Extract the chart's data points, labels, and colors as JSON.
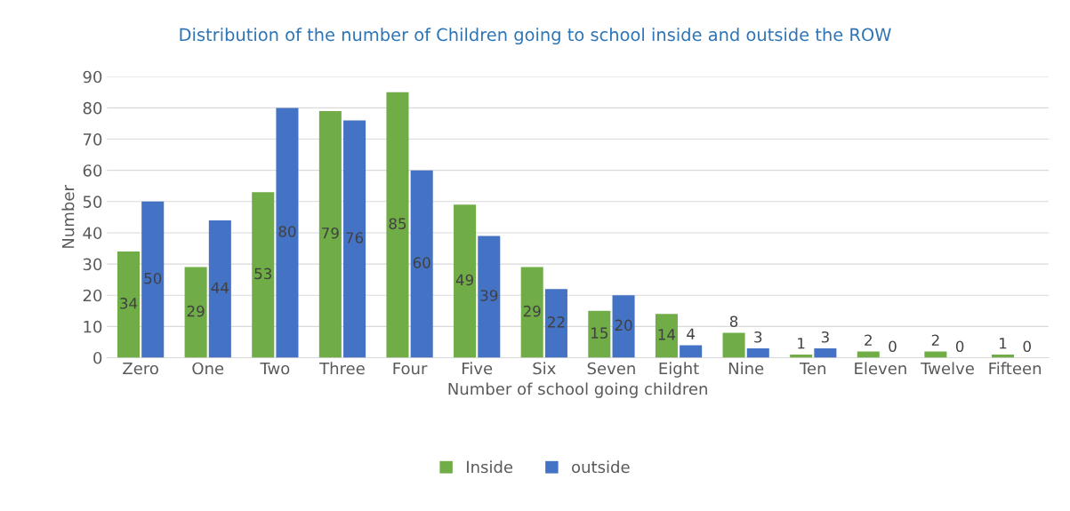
{
  "chart_data": {
    "type": "bar",
    "title": "Distribution of the number of Children going to school inside and outside the ROW",
    "xlabel": "Number of school going children",
    "ylabel": "Number",
    "categories": [
      "Zero",
      "One",
      "Two",
      "Three",
      "Four",
      "Five",
      "Six",
      "Seven",
      "Eight",
      "Nine",
      "Ten",
      "Eleven",
      "Twelve",
      "Fifteen"
    ],
    "series": [
      {
        "name": "Inside",
        "color": "#70ad47",
        "values": [
          34,
          29,
          53,
          79,
          85,
          49,
          29,
          15,
          14,
          8,
          1,
          2,
          2,
          1
        ]
      },
      {
        "name": "outside",
        "color": "#4472c4",
        "values": [
          50,
          44,
          80,
          76,
          60,
          39,
          22,
          20,
          4,
          3,
          3,
          0,
          0,
          0
        ]
      }
    ],
    "ylim": [
      0,
      90
    ],
    "yticks": [
      0,
      10,
      20,
      30,
      40,
      50,
      60,
      70,
      80,
      90
    ],
    "grid": "y",
    "legend": "bottom",
    "data_labels": true
  }
}
